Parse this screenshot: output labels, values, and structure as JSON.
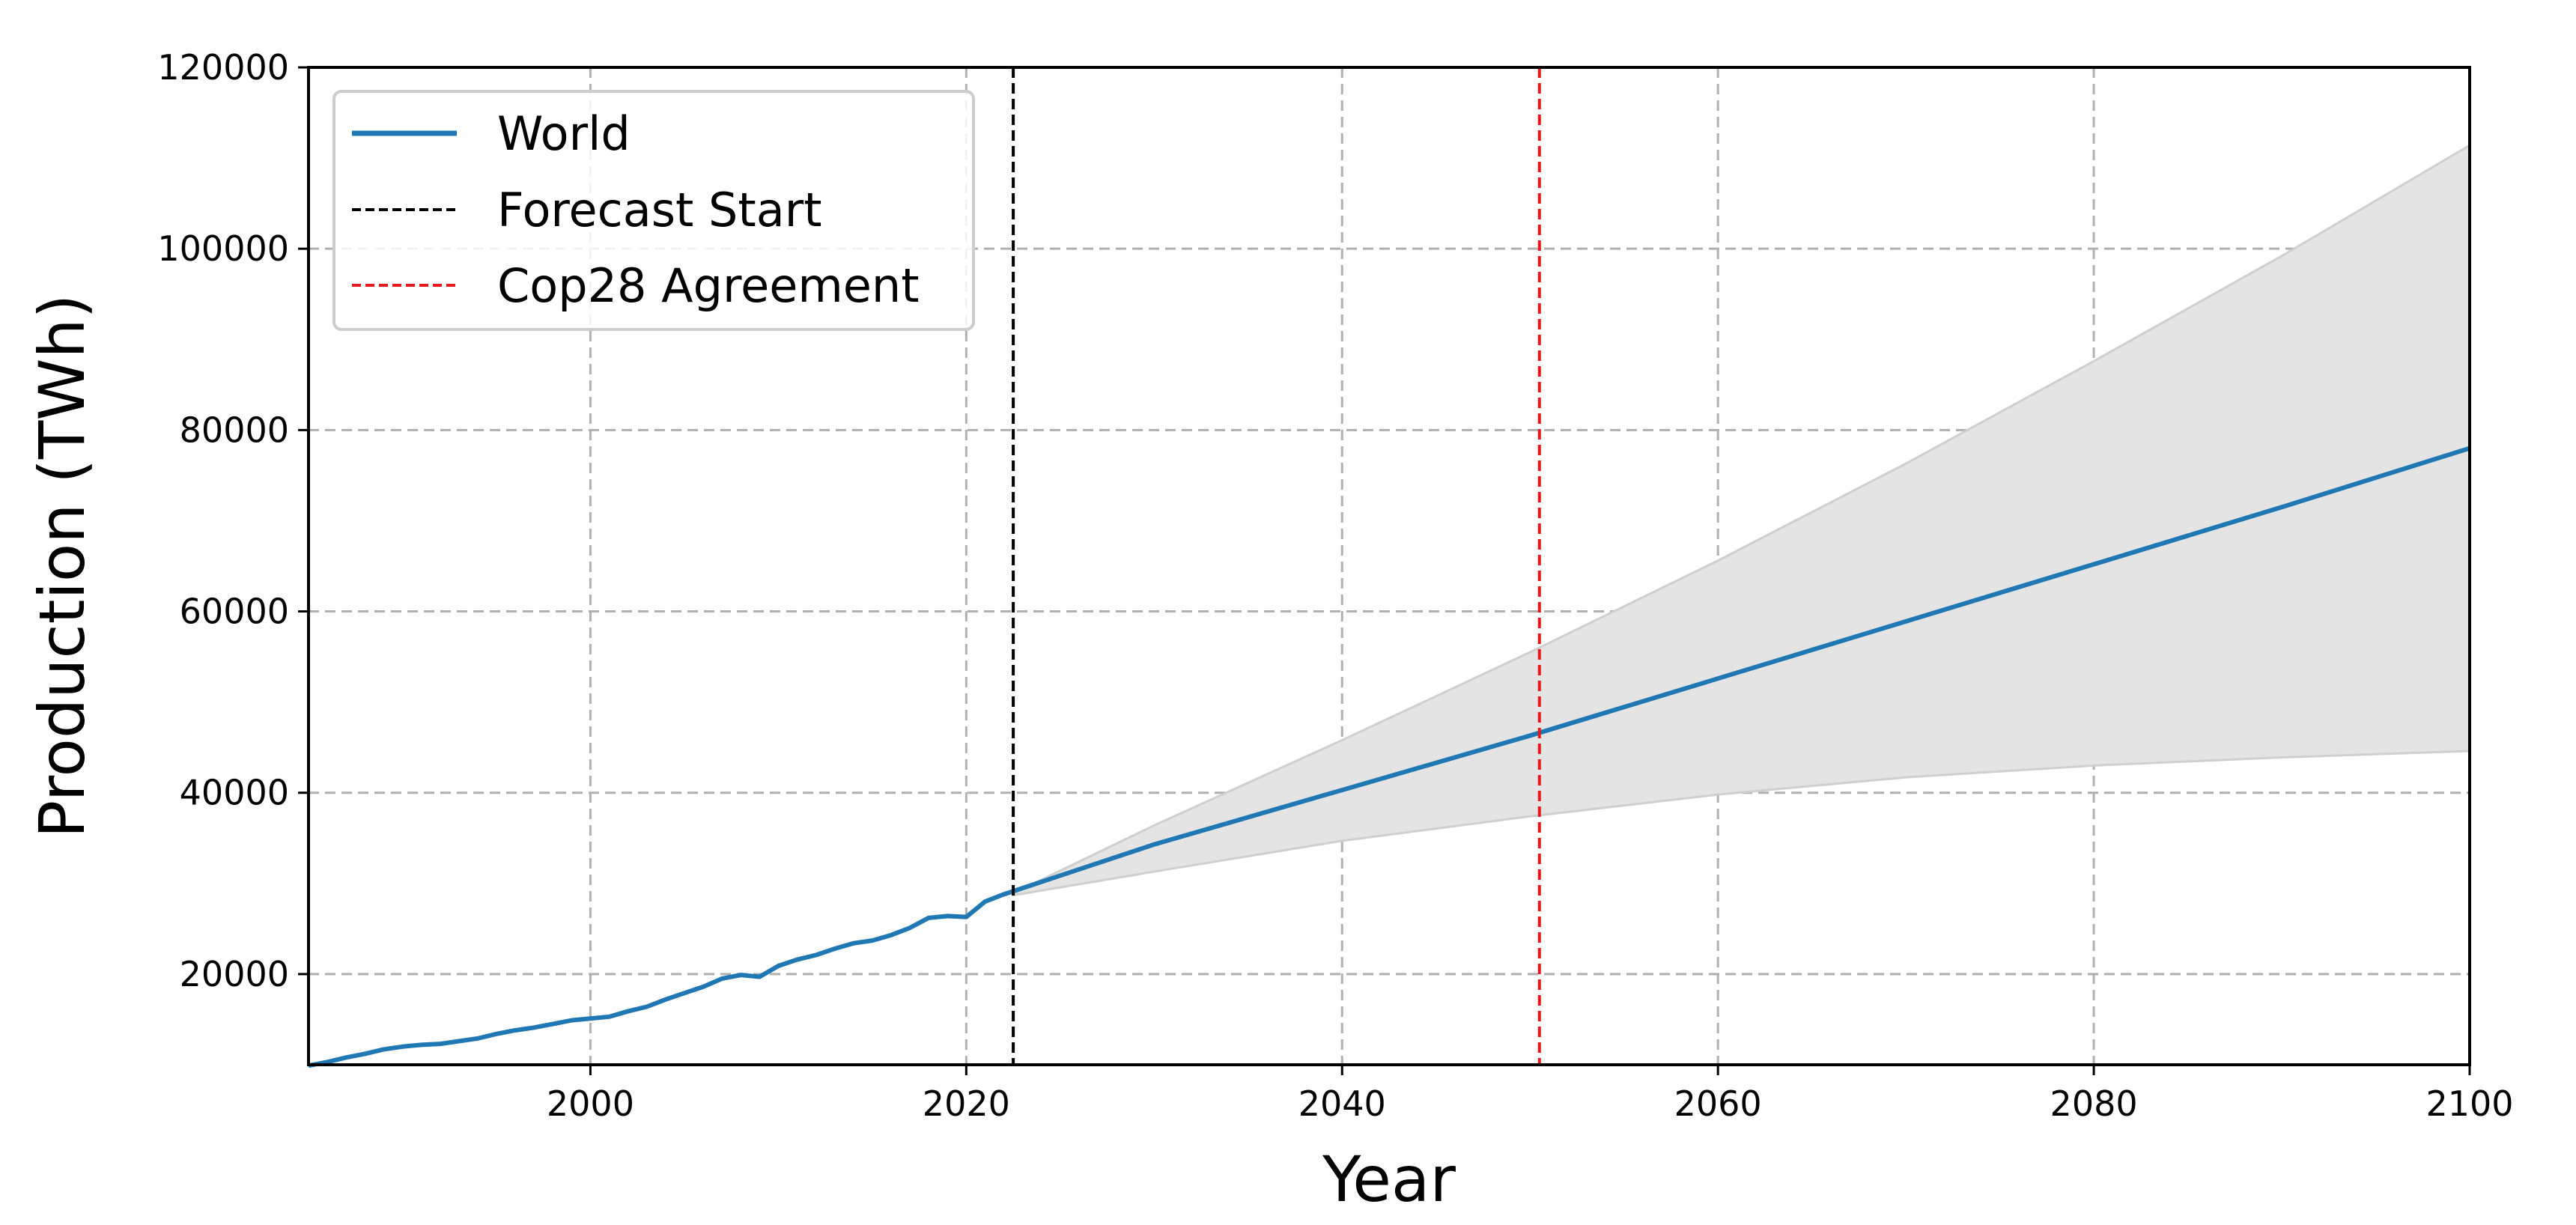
{
  "chart_data": {
    "type": "line",
    "title": "",
    "xlabel": "Year",
    "ylabel": "Production (TWh)",
    "xlim": [
      1985,
      2100
    ],
    "ylim": [
      10000,
      120000
    ],
    "xticks": [
      2000,
      2020,
      2040,
      2060,
      2080,
      2100
    ],
    "yticks": [
      20000,
      40000,
      60000,
      80000,
      100000,
      120000
    ],
    "x_tick_labels": [
      "2000",
      "2020",
      "2040",
      "2060",
      "2080",
      "2100"
    ],
    "y_tick_labels": [
      "20000",
      "40000",
      "60000",
      "80000",
      "100000",
      "120000"
    ],
    "grid": true,
    "legend_position": "top-left",
    "colors": {
      "world": "#1f77b4",
      "forecast_start": "#000000",
      "cop28": "#e41a1c",
      "band": "#e4e4e4"
    },
    "series": [
      {
        "name": "World",
        "x": [
          1985,
          1986,
          1987,
          1988,
          1989,
          1990,
          1991,
          1992,
          1993,
          1994,
          1995,
          1996,
          1997,
          1998,
          1999,
          2000,
          2001,
          2002,
          2003,
          2004,
          2005,
          2006,
          2007,
          2008,
          2009,
          2010,
          2011,
          2012,
          2013,
          2014,
          2015,
          2016,
          2017,
          2018,
          2019,
          2020,
          2021,
          2022,
          2030,
          2040,
          2050,
          2060,
          2070,
          2080,
          2090,
          2100
        ],
        "y": [
          9900,
          10300,
          10800,
          11200,
          11700,
          12000,
          12200,
          12300,
          12600,
          12900,
          13400,
          13800,
          14100,
          14500,
          14900,
          15100,
          15300,
          15900,
          16400,
          17200,
          17900,
          18600,
          19500,
          19900,
          19700,
          20900,
          21600,
          22100,
          22800,
          23400,
          23700,
          24300,
          25100,
          26200,
          26400,
          26300,
          28000,
          28800,
          34300,
          40300,
          46300,
          52600,
          58900,
          65200,
          71500,
          78000
        ]
      }
    ],
    "forecast_band": {
      "x": [
        2022.5,
        2030,
        2040,
        2050,
        2060,
        2070,
        2080,
        2090,
        2100
      ],
      "upper": [
        28900,
        36400,
        45800,
        55500,
        65600,
        76300,
        87600,
        99200,
        111400
      ],
      "lower": [
        28700,
        31300,
        34700,
        37400,
        39800,
        41700,
        43000,
        43900,
        44600
      ]
    },
    "vertical_lines": [
      {
        "name": "Forecast Start",
        "x": 2022.5
      },
      {
        "name": "Cop28 Agreement",
        "x": 2050.5
      }
    ]
  }
}
